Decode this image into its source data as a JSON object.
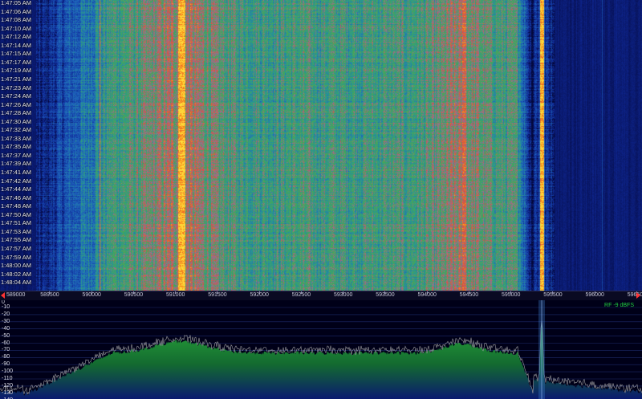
{
  "waterfall": {
    "time_labels": [
      "1:47:05 AM",
      "1:47:06 AM",
      "1:47:08 AM",
      "1:47:10 AM",
      "1:47:12 AM",
      "1:47:14 AM",
      "1:47:15 AM",
      "1:47:17 AM",
      "1:47:19 AM",
      "1:47:21 AM",
      "1:47:23 AM",
      "1:47:24 AM",
      "1:47:26 AM",
      "1:47:28 AM",
      "1:47:30 AM",
      "1:47:32 AM",
      "1:47:33 AM",
      "1:47:35 AM",
      "1:47:37 AM",
      "1:47:39 AM",
      "1:47:41 AM",
      "1:47:42 AM",
      "1:47:44 AM",
      "1:47:46 AM",
      "1:47:48 AM",
      "1:47:50 AM",
      "1:47:51 AM",
      "1:47:53 AM",
      "1:47:55 AM",
      "1:47:57 AM",
      "1:47:59 AM",
      "1:48:00 AM",
      "1:48:02 AM",
      "1:48:04 AM"
    ]
  },
  "frequency_axis": {
    "labels": [
      "589000",
      "589500",
      "590000",
      "590500",
      "591000",
      "591500",
      "592000",
      "592500",
      "593000",
      "593500",
      "594000",
      "594500",
      "595000",
      "595500",
      "596000",
      "596500"
    ],
    "start_label": "589000",
    "units": "kHz"
  },
  "spectrum": {
    "db_labels": [
      "-10",
      "-20",
      "-30",
      "-40",
      "-50",
      "-60",
      "-70",
      "-80",
      "-90",
      "-100",
      "-110",
      "-120",
      "-130",
      "-140"
    ],
    "top_label": "0",
    "rf_readout": "RF  -9 dBFS",
    "peak_frequency_khz": 595700
  },
  "colors": {
    "background": "#000018",
    "waterfall_low": "#0a1a80",
    "waterfall_high": "#ff6000",
    "spectrum_fill": "#1a8a2a",
    "spectrum_trace": "#b8b8b8",
    "rf_readout": "#20d040",
    "marker": "#ff3333"
  }
}
